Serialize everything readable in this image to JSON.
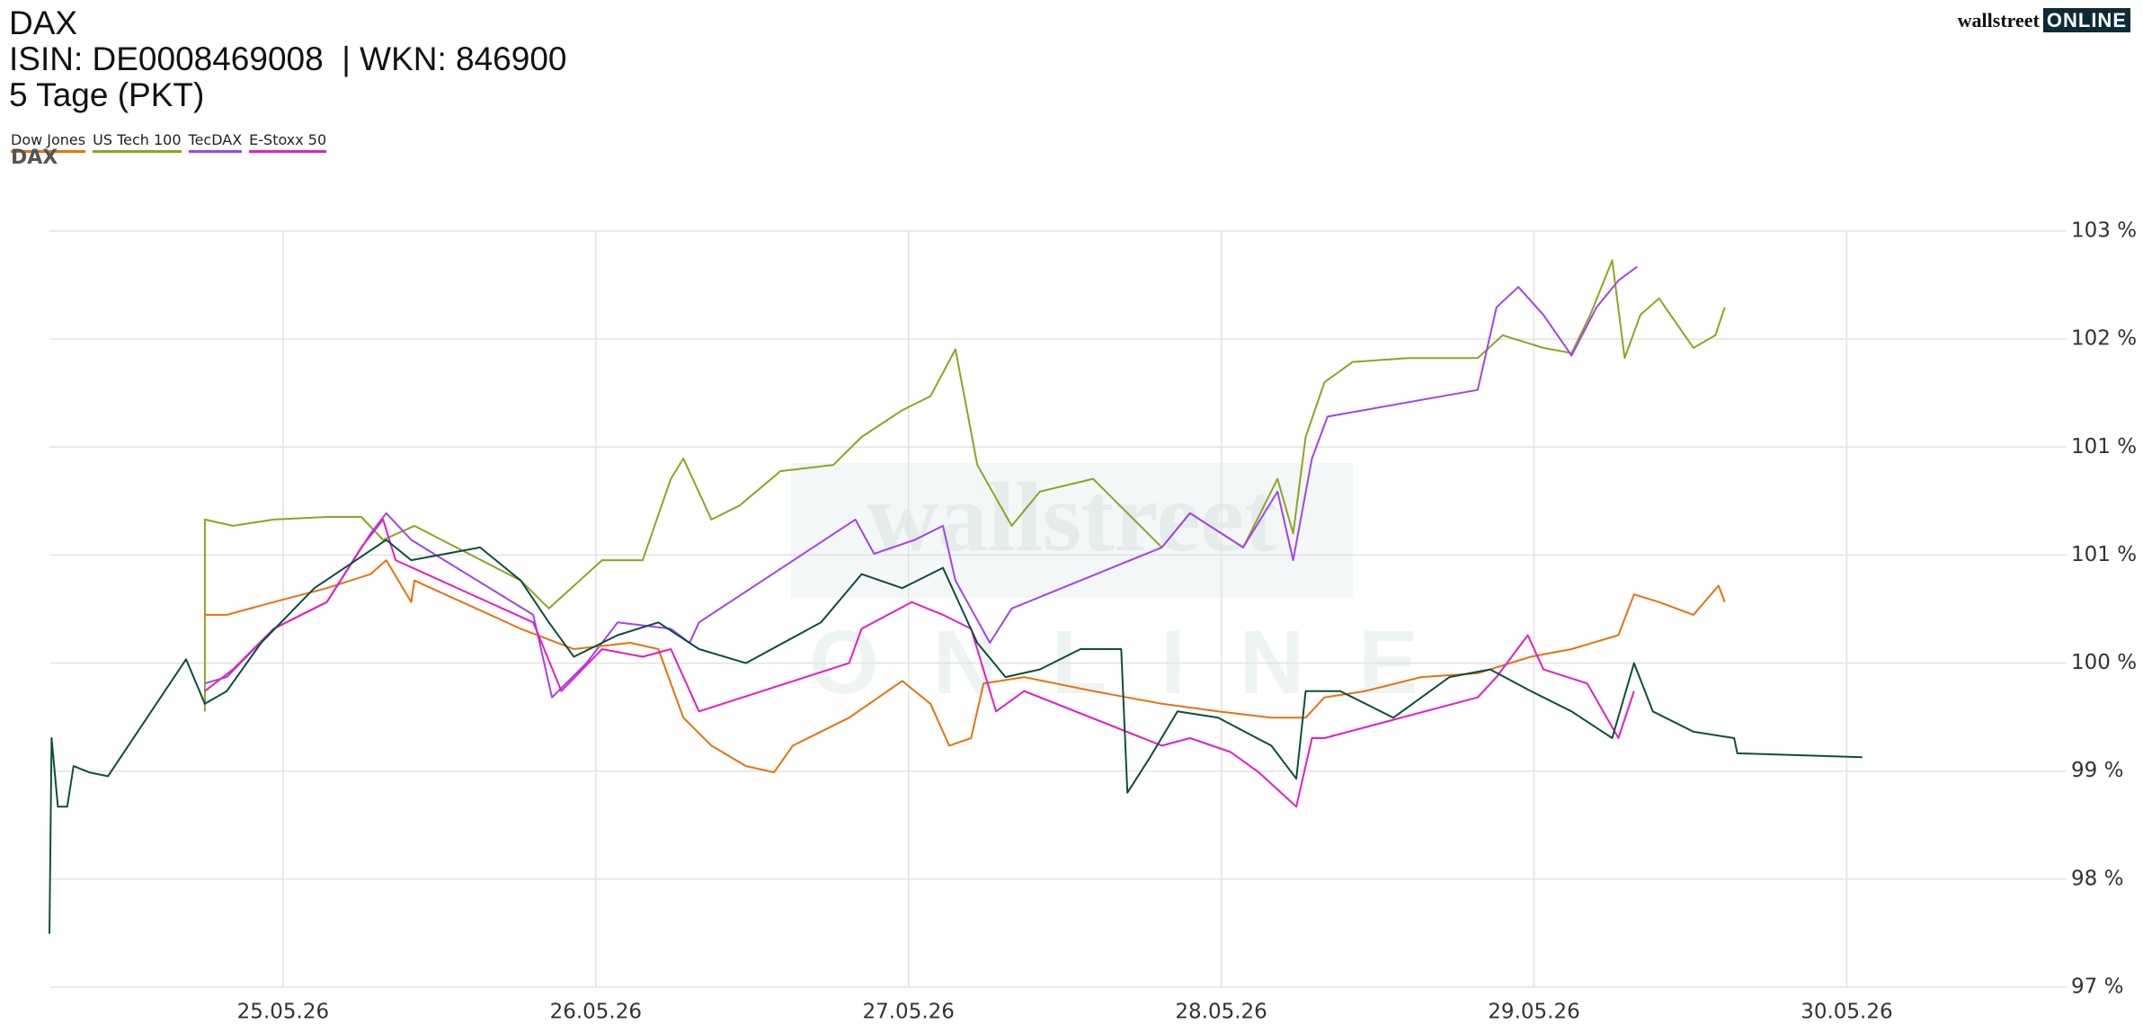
{
  "header": {
    "title": "DAX",
    "ids": "ISIN: DE0008469008  | WKN: 846900",
    "period": "5 Tage (PKT)"
  },
  "logo": {
    "brand": "wallstreet",
    "suffix": "ONLINE"
  },
  "chart_data": {
    "type": "line",
    "grid": true,
    "xlim": [
      24.253,
      30.703
    ],
    "xticks": [
      {
        "value": 25,
        "label": "25.05.26"
      },
      {
        "value": 26,
        "label": "26.05.26"
      },
      {
        "value": 27,
        "label": "27.05.26"
      },
      {
        "value": 28,
        "label": "28.05.26"
      },
      {
        "value": 29,
        "label": "29.05.26"
      },
      {
        "value": 30,
        "label": "30.05.26"
      }
    ],
    "ylim": [
      97.15,
      103.1
    ],
    "yticks": [
      {
        "value": 97.15,
        "label": "97 %"
      },
      {
        "value": 98.0,
        "label": "98 %"
      },
      {
        "value": 98.85,
        "label": "99 %"
      },
      {
        "value": 99.7,
        "label": "100 %"
      },
      {
        "value": 100.55,
        "label": "101 %"
      },
      {
        "value": 101.4,
        "label": "101 %"
      },
      {
        "value": 102.25,
        "label": "102 %"
      },
      {
        "value": 103.1,
        "label": "103 %"
      }
    ],
    "series": [
      {
        "name": "Dow Jones",
        "color": "#e8720c",
        "x": [
          24.75,
          24.82,
          24.97,
          25.14,
          25.28,
          25.33,
          25.41,
          25.42,
          25.76,
          25.93,
          26.11,
          26.2,
          26.28,
          26.37,
          26.48,
          26.57,
          26.63,
          26.81,
          26.98,
          27.07,
          27.13,
          27.2,
          27.24,
          27.37,
          27.59,
          27.81,
          27.99,
          28.16,
          28.27,
          28.33,
          28.46,
          28.64,
          28.82,
          28.99,
          29.12,
          29.27,
          29.32,
          29.4,
          29.51,
          29.59,
          29.61
        ],
        "values": [
          100.08,
          100.08,
          100.18,
          100.29,
          100.4,
          100.51,
          100.18,
          100.35,
          99.97,
          99.81,
          99.86,
          99.81,
          99.27,
          99.05,
          98.89,
          98.84,
          99.05,
          99.27,
          99.56,
          99.38,
          99.05,
          99.11,
          99.54,
          99.59,
          99.48,
          99.38,
          99.32,
          99.27,
          99.27,
          99.43,
          99.48,
          99.59,
          99.62,
          99.75,
          99.81,
          99.92,
          100.24,
          100.18,
          100.08,
          100.31,
          100.18
        ]
      },
      {
        "name": "US Tech 100",
        "color": "#8fa31f",
        "x": [
          24.75,
          24.75,
          24.84,
          24.97,
          25.14,
          25.25,
          25.32,
          25.42,
          25.76,
          25.85,
          26.02,
          26.15,
          26.24,
          26.28,
          26.37,
          26.46,
          26.59,
          26.76,
          26.85,
          26.98,
          27.07,
          27.15,
          27.22,
          27.33,
          27.42,
          27.59,
          27.81,
          27.9,
          28.07,
          28.18,
          28.23,
          28.27,
          28.33,
          28.42,
          28.6,
          28.82,
          28.9,
          29.03,
          29.12,
          29.18,
          29.25,
          29.29,
          29.34,
          29.4,
          29.51,
          29.58,
          29.61
        ],
        "values": [
          99.32,
          100.83,
          100.78,
          100.83,
          100.85,
          100.85,
          100.67,
          100.78,
          100.35,
          100.13,
          100.51,
          100.51,
          101.15,
          101.31,
          100.83,
          100.94,
          101.21,
          101.26,
          101.48,
          101.69,
          101.8,
          102.17,
          101.26,
          100.78,
          101.05,
          101.15,
          100.61,
          100.88,
          100.61,
          101.15,
          100.72,
          101.48,
          101.91,
          102.07,
          102.1,
          102.1,
          102.28,
          102.18,
          102.14,
          102.44,
          102.87,
          102.1,
          102.44,
          102.57,
          102.18,
          102.28,
          102.5
        ]
      },
      {
        "name": "TecDAX",
        "color": "#a541ee",
        "x": [
          24.75,
          24.82,
          24.97,
          25.14,
          25.28,
          25.33,
          25.41,
          25.8,
          25.86,
          25.97,
          26.07,
          26.24,
          26.3,
          26.33,
          26.83,
          26.89,
          27.02,
          27.11,
          27.15,
          27.26,
          27.33,
          27.81,
          27.9,
          28.07,
          28.18,
          28.23,
          28.29,
          28.34,
          28.82,
          28.88,
          28.95,
          29.03,
          29.12,
          29.2,
          29.27,
          29.33
        ],
        "values": [
          99.54,
          99.59,
          99.97,
          100.18,
          100.72,
          100.88,
          100.67,
          100.08,
          99.43,
          99.7,
          100.02,
          99.97,
          99.86,
          100.02,
          100.83,
          100.56,
          100.67,
          100.78,
          100.35,
          99.86,
          100.13,
          100.61,
          100.88,
          100.61,
          101.05,
          100.51,
          101.31,
          101.64,
          101.85,
          102.5,
          102.66,
          102.44,
          102.12,
          102.5,
          102.71,
          102.82
        ]
      },
      {
        "name": "E-Stoxx 50",
        "color": "#e61cc8",
        "x": [
          24.75,
          24.84,
          24.97,
          25.14,
          25.25,
          25.32,
          25.36,
          25.8,
          25.89,
          26.02,
          26.15,
          26.24,
          26.33,
          26.81,
          26.85,
          27.01,
          27.11,
          27.2,
          27.28,
          27.37,
          27.81,
          27.9,
          28.03,
          28.12,
          28.24,
          28.29,
          28.33,
          28.82,
          28.88,
          28.98,
          29.03,
          29.17,
          29.27,
          29.32
        ],
        "values": [
          99.48,
          99.65,
          99.97,
          100.18,
          100.61,
          100.83,
          100.51,
          100.02,
          99.48,
          99.81,
          99.75,
          99.81,
          99.32,
          99.7,
          99.97,
          100.18,
          100.08,
          99.97,
          99.32,
          99.48,
          99.05,
          99.11,
          99.0,
          98.84,
          98.57,
          99.11,
          99.11,
          99.43,
          99.59,
          99.92,
          99.65,
          99.54,
          99.11,
          99.48
        ]
      },
      {
        "name": "DAX",
        "color": "#0b4f3c",
        "x": [
          24.253,
          24.26,
          24.28,
          24.31,
          24.33,
          24.38,
          24.44,
          24.69,
          24.75,
          24.82,
          24.93,
          25.1,
          25.33,
          25.41,
          25.63,
          25.76,
          25.85,
          25.93,
          26.07,
          26.2,
          26.33,
          26.48,
          26.72,
          26.85,
          26.98,
          27.11,
          27.22,
          27.31,
          27.42,
          27.55,
          27.68,
          27.7,
          27.77,
          27.86,
          27.99,
          28.16,
          28.24,
          28.27,
          28.38,
          28.55,
          28.73,
          28.86,
          28.99,
          29.12,
          29.25,
          29.32,
          29.38,
          29.51,
          29.64,
          29.65,
          30.05
        ],
        "values": [
          97.57,
          99.11,
          98.57,
          98.57,
          98.89,
          98.84,
          98.81,
          99.73,
          99.38,
          99.48,
          99.86,
          100.29,
          100.67,
          100.51,
          100.61,
          100.35,
          100.02,
          99.75,
          99.92,
          100.02,
          99.81,
          99.7,
          100.02,
          100.4,
          100.29,
          100.45,
          99.86,
          99.59,
          99.65,
          99.81,
          99.81,
          98.68,
          98.95,
          99.32,
          99.27,
          99.05,
          98.79,
          99.48,
          99.48,
          99.27,
          99.59,
          99.65,
          99.48,
          99.32,
          99.11,
          99.7,
          99.32,
          99.16,
          99.11,
          98.99,
          98.96
        ]
      }
    ]
  }
}
